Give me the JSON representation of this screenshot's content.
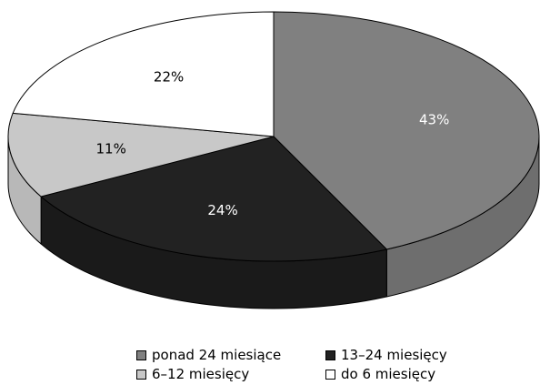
{
  "chart_data": {
    "type": "pie",
    "style": "3d",
    "title": "",
    "slices": [
      {
        "label": "ponad 24 miesiące",
        "value": 43,
        "display": "43%",
        "color": "#808080",
        "side_color": "#6e6e6e"
      },
      {
        "label": "13–24 miesięcy",
        "value": 24,
        "display": "24%",
        "color": "#222222",
        "side_color": "#1a1a1a"
      },
      {
        "label": "6–12 miesięcy",
        "value": 11,
        "display": "11%",
        "color": "#c8c8c8",
        "side_color": "#b8b8b8"
      },
      {
        "label": "do 6 miesięcy",
        "value": 22,
        "display": "22%",
        "color": "#ffffff",
        "side_color": "#f2f2f2"
      }
    ],
    "label_colors": [
      "#ffffff",
      "#ffffff",
      "#000000",
      "#000000"
    ],
    "legend_position": "bottom"
  }
}
